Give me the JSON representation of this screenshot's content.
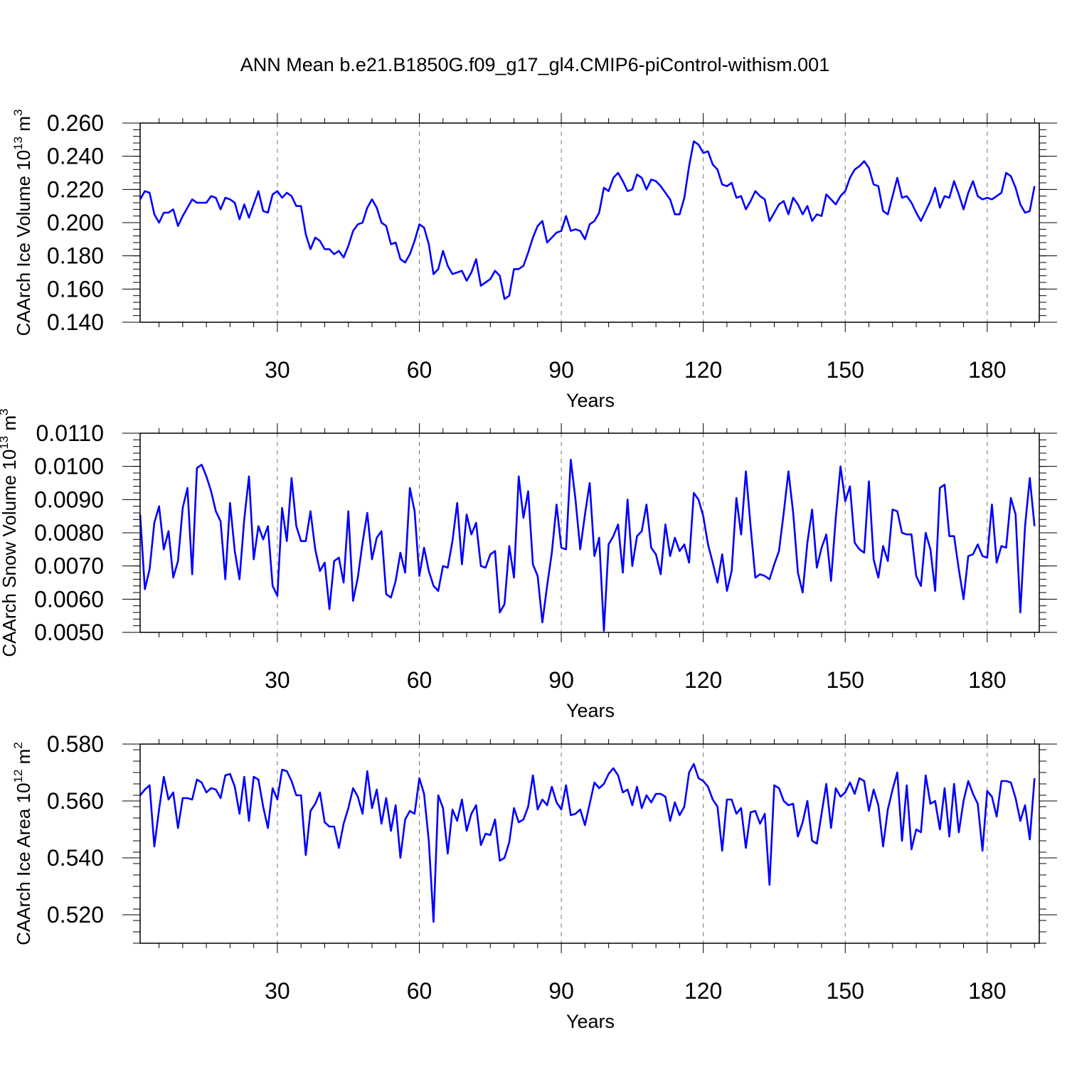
{
  "title": "ANN Mean b.e21.B1850G.f09_g17_gl4.CMIP6-piControl-withism.001",
  "line_color": "#0000ff",
  "chart_data": [
    {
      "type": "line",
      "ylabel": "CAArch Ice Volume 10",
      "ylabel_exp": "13",
      "ylabel_unit": " m",
      "ylabel_unit_exp": "3",
      "xlabel": "Years",
      "xlim": [
        1,
        191
      ],
      "ylim": [
        0.14,
        0.26
      ],
      "x_ticks": [
        30,
        60,
        90,
        120,
        150,
        180
      ],
      "x_tick_labels": [
        "30",
        "60",
        "90",
        "120",
        "150",
        "180"
      ],
      "y_ticks": [
        0.14,
        0.16,
        0.18,
        0.2,
        0.22,
        0.24,
        0.26
      ],
      "y_tick_labels": [
        "0.140",
        "0.160",
        "0.180",
        "0.200",
        "0.220",
        "0.240",
        "0.260"
      ],
      "y_minor_step": 0.004,
      "series": [
        {
          "name": "CAArch Ice Volume",
          "x_start": 1,
          "values": [
            0.214,
            0.219,
            0.218,
            0.205,
            0.2,
            0.206,
            0.206,
            0.208,
            0.198,
            0.204,
            0.209,
            0.214,
            0.212,
            0.212,
            0.212,
            0.216,
            0.215,
            0.208,
            0.215,
            0.214,
            0.212,
            0.202,
            0.211,
            0.203,
            0.211,
            0.219,
            0.207,
            0.206,
            0.217,
            0.219,
            0.215,
            0.218,
            0.216,
            0.21,
            0.21,
            0.193,
            0.184,
            0.191,
            0.189,
            0.184,
            0.184,
            0.181,
            0.183,
            0.179,
            0.186,
            0.195,
            0.199,
            0.2,
            0.209,
            0.214,
            0.209,
            0.2,
            0.198,
            0.187,
            0.188,
            0.178,
            0.176,
            0.181,
            0.189,
            0.199,
            0.197,
            0.187,
            0.169,
            0.172,
            0.183,
            0.174,
            0.169,
            0.17,
            0.171,
            0.165,
            0.17,
            0.178,
            0.162,
            0.164,
            0.166,
            0.171,
            0.168,
            0.154,
            0.156,
            0.172,
            0.172,
            0.174,
            0.182,
            0.191,
            0.198,
            0.201,
            0.188,
            0.191,
            0.194,
            0.195,
            0.204,
            0.195,
            0.196,
            0.195,
            0.19,
            0.199,
            0.201,
            0.206,
            0.221,
            0.219,
            0.227,
            0.23,
            0.225,
            0.219,
            0.22,
            0.229,
            0.227,
            0.22,
            0.226,
            0.225,
            0.222,
            0.218,
            0.214,
            0.205,
            0.205,
            0.215,
            0.234,
            0.249,
            0.247,
            0.242,
            0.243,
            0.235,
            0.232,
            0.223,
            0.222,
            0.224,
            0.215,
            0.216,
            0.208,
            0.213,
            0.219,
            0.216,
            0.214,
            0.201,
            0.206,
            0.211,
            0.213,
            0.205,
            0.215,
            0.211,
            0.205,
            0.21,
            0.201,
            0.205,
            0.204,
            0.217,
            0.214,
            0.211,
            0.216,
            0.219,
            0.227,
            0.232,
            0.234,
            0.237,
            0.233,
            0.223,
            0.222,
            0.207,
            0.205,
            0.216,
            0.227,
            0.215,
            0.216,
            0.212,
            0.206,
            0.201,
            0.207,
            0.213,
            0.221,
            0.209,
            0.216,
            0.215,
            0.225,
            0.217,
            0.208,
            0.218,
            0.225,
            0.216,
            0.214,
            0.215,
            0.214,
            0.216,
            0.218,
            0.23,
            0.228,
            0.221,
            0.211,
            0.206,
            0.207,
            0.222
          ]
        }
      ]
    },
    {
      "type": "line",
      "ylabel": "CAArch Snow Volume 10",
      "ylabel_exp": "13",
      "ylabel_unit": " m",
      "ylabel_unit_exp": "3",
      "xlabel": "Years",
      "xlim": [
        1,
        191
      ],
      "ylim": [
        0.005,
        0.011
      ],
      "x_ticks": [
        30,
        60,
        90,
        120,
        150,
        180
      ],
      "x_tick_labels": [
        "30",
        "60",
        "90",
        "120",
        "150",
        "180"
      ],
      "y_ticks": [
        0.005,
        0.006,
        0.007,
        0.008,
        0.009,
        0.01,
        0.011
      ],
      "y_tick_labels": [
        "0.0050",
        "0.0060",
        "0.0070",
        "0.0080",
        "0.0090",
        "0.0100",
        "0.0110"
      ],
      "y_minor_step": 0.0002,
      "series": [
        {
          "name": "CAArch Snow Volume",
          "x_start": 1,
          "values": [
            0.00855,
            0.0063,
            0.0069,
            0.0083,
            0.0088,
            0.0075,
            0.00805,
            0.00665,
            0.00715,
            0.00875,
            0.00935,
            0.00675,
            0.00995,
            0.01005,
            0.0097,
            0.00925,
            0.00865,
            0.00835,
            0.0066,
            0.0089,
            0.00745,
            0.0066,
            0.0084,
            0.0097,
            0.0072,
            0.0082,
            0.0078,
            0.0082,
            0.0064,
            0.0061,
            0.00875,
            0.00775,
            0.00965,
            0.0082,
            0.00775,
            0.00775,
            0.00865,
            0.0075,
            0.00685,
            0.0071,
            0.0057,
            0.00715,
            0.00725,
            0.0065,
            0.00865,
            0.00595,
            0.00665,
            0.0077,
            0.0086,
            0.0072,
            0.00785,
            0.00805,
            0.00615,
            0.00605,
            0.00655,
            0.0074,
            0.0068,
            0.00935,
            0.00865,
            0.0067,
            0.00755,
            0.00685,
            0.0064,
            0.00625,
            0.007,
            0.00695,
            0.00775,
            0.0089,
            0.00705,
            0.00855,
            0.00795,
            0.0083,
            0.007,
            0.00695,
            0.00735,
            0.00745,
            0.0056,
            0.00585,
            0.0076,
            0.00665,
            0.0097,
            0.00845,
            0.00925,
            0.00705,
            0.0067,
            0.0053,
            0.0064,
            0.0074,
            0.00885,
            0.00755,
            0.0075,
            0.0102,
            0.009,
            0.0075,
            0.00855,
            0.0095,
            0.0073,
            0.00785,
            0.00505,
            0.00765,
            0.0079,
            0.00825,
            0.0068,
            0.009,
            0.007,
            0.0079,
            0.00805,
            0.00885,
            0.00755,
            0.00735,
            0.00675,
            0.00825,
            0.0073,
            0.00785,
            0.00745,
            0.00765,
            0.0071,
            0.0092,
            0.009,
            0.0085,
            0.00765,
            0.0071,
            0.0065,
            0.00735,
            0.00625,
            0.00685,
            0.00905,
            0.00795,
            0.00985,
            0.0082,
            0.00665,
            0.00675,
            0.0067,
            0.0066,
            0.00705,
            0.00745,
            0.0086,
            0.00985,
            0.0086,
            0.0068,
            0.0062,
            0.0077,
            0.0087,
            0.00695,
            0.00755,
            0.00795,
            0.00655,
            0.00845,
            0.01,
            0.00895,
            0.0094,
            0.0077,
            0.0075,
            0.0074,
            0.00955,
            0.0072,
            0.00665,
            0.0076,
            0.00715,
            0.0087,
            0.00865,
            0.008,
            0.00795,
            0.00795,
            0.0067,
            0.0064,
            0.008,
            0.0075,
            0.00625,
            0.00935,
            0.00945,
            0.0079,
            0.0079,
            0.0069,
            0.006,
            0.0073,
            0.00735,
            0.00765,
            0.0073,
            0.00725,
            0.00885,
            0.0071,
            0.0076,
            0.00755,
            0.00905,
            0.00855,
            0.0056,
            0.0082,
            0.00965,
            0.0082
          ]
        }
      ]
    },
    {
      "type": "line",
      "ylabel": "CAArch Ice Area 10",
      "ylabel_exp": "12",
      "ylabel_unit": " m",
      "ylabel_unit_exp": "2",
      "xlabel": "Years",
      "xlim": [
        1,
        191
      ],
      "ylim": [
        0.51,
        0.58
      ],
      "x_ticks": [
        30,
        60,
        90,
        120,
        150,
        180
      ],
      "x_tick_labels": [
        "30",
        "60",
        "90",
        "120",
        "150",
        "180"
      ],
      "y_ticks": [
        0.52,
        0.54,
        0.56,
        0.58
      ],
      "y_tick_labels": [
        "0.520",
        "0.540",
        "0.560",
        "0.580"
      ],
      "y_minor_step": 0.004,
      "series": [
        {
          "name": "CAArch Ice Area",
          "x_start": 1,
          "values": [
            0.562,
            0.564,
            0.5655,
            0.544,
            0.557,
            0.5685,
            0.5605,
            0.563,
            0.5505,
            0.561,
            0.561,
            0.5605,
            0.5675,
            0.5665,
            0.563,
            0.5645,
            0.564,
            0.561,
            0.569,
            0.5695,
            0.565,
            0.5555,
            0.5685,
            0.553,
            0.5685,
            0.5675,
            0.558,
            0.5505,
            0.5645,
            0.5605,
            0.571,
            0.5705,
            0.567,
            0.562,
            0.562,
            0.541,
            0.5565,
            0.559,
            0.563,
            0.5525,
            0.551,
            0.551,
            0.5435,
            0.552,
            0.5575,
            0.5645,
            0.5615,
            0.5555,
            0.5705,
            0.5575,
            0.564,
            0.552,
            0.561,
            0.5495,
            0.5585,
            0.54,
            0.5535,
            0.5565,
            0.5555,
            0.568,
            0.5625,
            0.546,
            0.5175,
            0.562,
            0.5575,
            0.5415,
            0.557,
            0.553,
            0.5605,
            0.5495,
            0.5555,
            0.5585,
            0.5445,
            0.5485,
            0.548,
            0.5535,
            0.539,
            0.54,
            0.5455,
            0.5575,
            0.5525,
            0.5535,
            0.558,
            0.569,
            0.557,
            0.5605,
            0.5585,
            0.565,
            0.5595,
            0.557,
            0.5655,
            0.555,
            0.5555,
            0.557,
            0.5515,
            0.559,
            0.5665,
            0.5645,
            0.566,
            0.5695,
            0.5715,
            0.569,
            0.563,
            0.564,
            0.5585,
            0.565,
            0.5575,
            0.562,
            0.5595,
            0.5625,
            0.5625,
            0.5615,
            0.553,
            0.5595,
            0.555,
            0.558,
            0.57,
            0.573,
            0.568,
            0.567,
            0.565,
            0.5605,
            0.558,
            0.5425,
            0.5605,
            0.5605,
            0.5555,
            0.5575,
            0.5435,
            0.556,
            0.5565,
            0.552,
            0.5555,
            0.5305,
            0.5655,
            0.5645,
            0.56,
            0.5585,
            0.559,
            0.5475,
            0.5525,
            0.56,
            0.546,
            0.545,
            0.5555,
            0.566,
            0.5505,
            0.5645,
            0.5615,
            0.563,
            0.5665,
            0.5625,
            0.568,
            0.567,
            0.5565,
            0.564,
            0.5585,
            0.544,
            0.557,
            0.564,
            0.57,
            0.546,
            0.5655,
            0.543,
            0.55,
            0.549,
            0.569,
            0.559,
            0.56,
            0.55,
            0.5645,
            0.5475,
            0.566,
            0.549,
            0.56,
            0.567,
            0.5625,
            0.559,
            0.5425,
            0.5635,
            0.5615,
            0.5545,
            0.567,
            0.567,
            0.5665,
            0.561,
            0.553,
            0.5585,
            0.5465,
            0.568
          ]
        }
      ]
    }
  ]
}
